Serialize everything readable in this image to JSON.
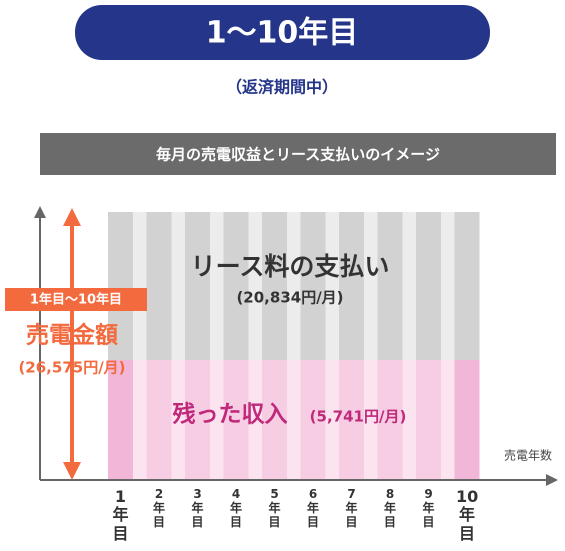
{
  "title": "1～10年目",
  "subtitle": "（返済期間中）",
  "banner": "毎月の売電収益とリース支払いのイメージ",
  "left": {
    "period": "1年目～10年目",
    "label": "売電金額",
    "amount": "(26,575円/月)"
  },
  "upper": {
    "label": "リース料の支払い",
    "amount": "(20,834円/月)"
  },
  "lower": {
    "label": "残った収入",
    "amount": "(5,741円/月)"
  },
  "x_axis_label": "売電年数",
  "columns": [
    "1年目",
    "2年目",
    "3年目",
    "4年目",
    "5年目",
    "6年目",
    "7年目",
    "8年目",
    "9年目",
    "10年目"
  ]
}
